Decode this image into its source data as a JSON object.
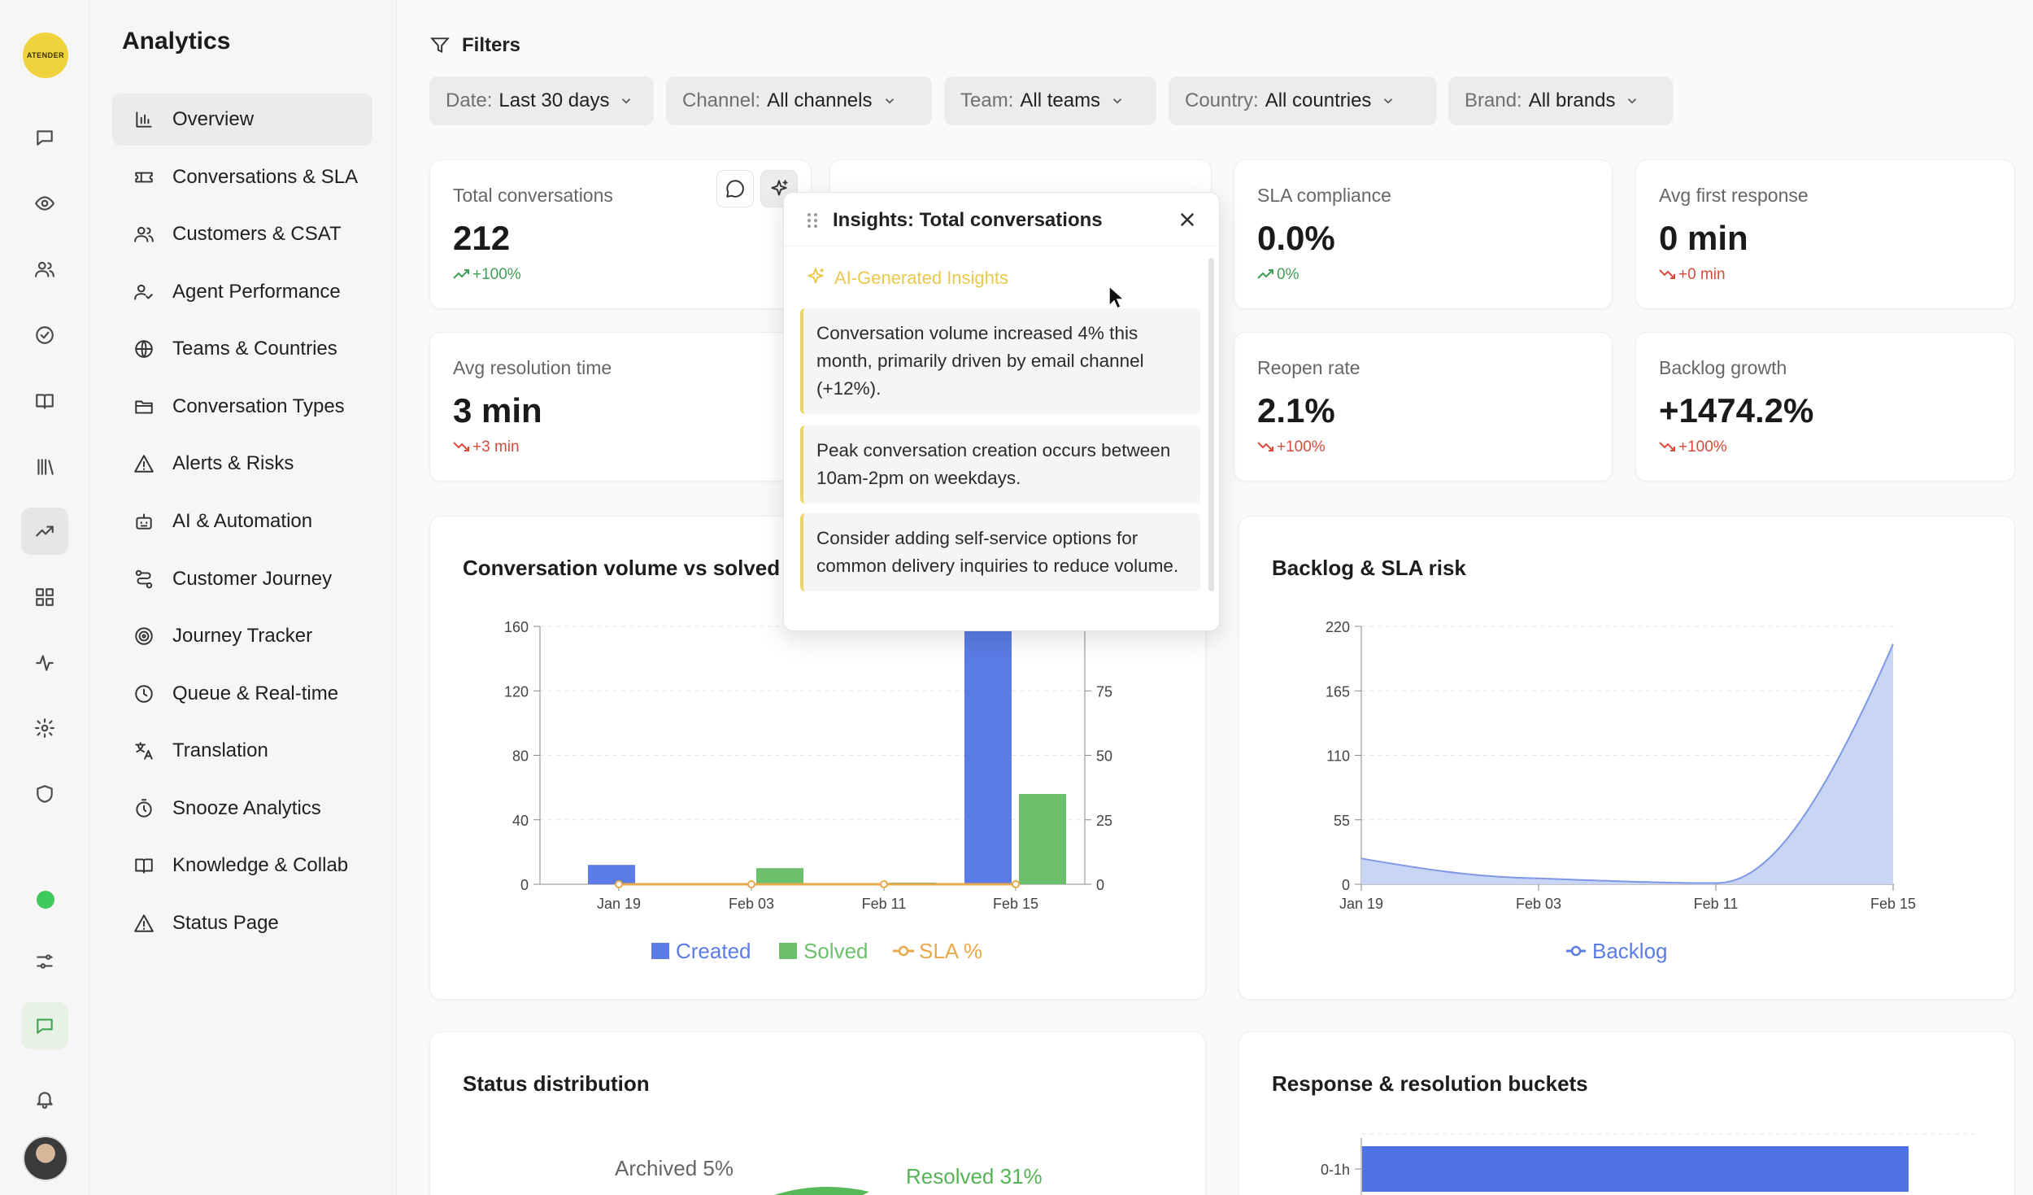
{
  "brand": {
    "logo_text": "ATENDER"
  },
  "sidebar": {
    "title": "Analytics",
    "items": [
      {
        "label": "Overview",
        "icon": "bar-chart-icon"
      },
      {
        "label": "Conversations & SLA",
        "icon": "ticket-icon"
      },
      {
        "label": "Customers & CSAT",
        "icon": "users-icon"
      },
      {
        "label": "Agent Performance",
        "icon": "user-check-icon"
      },
      {
        "label": "Teams & Countries",
        "icon": "globe-icon"
      },
      {
        "label": "Conversation Types",
        "icon": "folder-icon"
      },
      {
        "label": "Alerts & Risks",
        "icon": "warning-icon"
      },
      {
        "label": "AI & Automation",
        "icon": "bot-icon"
      },
      {
        "label": "Customer Journey",
        "icon": "route-icon"
      },
      {
        "label": "Journey Tracker",
        "icon": "target-icon"
      },
      {
        "label": "Queue & Real-time",
        "icon": "clock-icon"
      },
      {
        "label": "Translation",
        "icon": "translate-icon"
      },
      {
        "label": "Snooze Analytics",
        "icon": "timer-icon"
      },
      {
        "label": "Knowledge & Collab",
        "icon": "book-icon"
      },
      {
        "label": "Status Page",
        "icon": "warning-icon"
      }
    ]
  },
  "filters": {
    "heading": "Filters",
    "chips": [
      {
        "key": "Date:",
        "value": "Last 30 days"
      },
      {
        "key": "Channel:",
        "value": "All channels"
      },
      {
        "key": "Team:",
        "value": "All teams"
      },
      {
        "key": "Country:",
        "value": "All countries"
      },
      {
        "key": "Brand:",
        "value": "All brands"
      }
    ]
  },
  "kpis": {
    "total_conversations": {
      "label": "Total conversations",
      "value": "212",
      "delta": "+100%"
    },
    "sla_compliance": {
      "label": "SLA compliance",
      "value": "0.0%",
      "delta": "0%"
    },
    "avg_first_response": {
      "label": "Avg first response",
      "value": "0 min",
      "delta": "+0 min"
    },
    "avg_resolution": {
      "label": "Avg resolution time",
      "value": "3 min",
      "delta": "+3 min"
    },
    "reopen_rate": {
      "label": "Reopen rate",
      "value": "2.1%",
      "delta": "+100%"
    },
    "backlog_growth": {
      "label": "Backlog growth",
      "value": "+1474.2%",
      "delta": "+100%"
    }
  },
  "insights": {
    "title": "Insights: Total conversations",
    "section_label": "AI-Generated Insights",
    "items": [
      "Conversation volume increased 4% this month, primarily driven by email channel (+12%).",
      "Peak conversation creation occurs between 10am-2pm on weekdays.",
      "Consider adding self-service options for common delivery inquiries to reduce volume."
    ]
  },
  "charts": {
    "volume_title": "Conversation volume vs solved",
    "backlog_title": "Backlog & SLA risk",
    "status_title": "Status distribution",
    "buckets_title": "Response & resolution buckets"
  },
  "chart_data": [
    {
      "type": "bar",
      "title": "Conversation volume vs solved",
      "categories": [
        "Jan 19",
        "Feb 03",
        "Feb 11",
        "Feb 15"
      ],
      "ylim": [
        0,
        160
      ],
      "yticks": [
        0,
        40,
        80,
        120,
        160
      ],
      "y2ticks": [
        0,
        25,
        50,
        75
      ],
      "series": [
        {
          "name": "Created",
          "values": [
            12,
            0,
            0,
            160
          ],
          "color": "#5b7ce6"
        },
        {
          "name": "Solved",
          "values": [
            0,
            10,
            1,
            56
          ],
          "color": "#6cc06c"
        },
        {
          "name": "SLA %",
          "values": [
            0,
            0,
            0,
            0
          ],
          "color": "#e8a94a"
        }
      ],
      "legend": "bottom"
    },
    {
      "type": "area",
      "title": "Backlog & SLA risk",
      "x": [
        "Jan 19",
        "Feb 03",
        "Feb 11",
        "Feb 15"
      ],
      "xticks": [
        "Jan 19",
        "Feb 03",
        "Feb 11",
        "Feb 15"
      ],
      "ylim": [
        0,
        220
      ],
      "yticks": [
        0,
        55,
        110,
        165,
        220
      ],
      "series": [
        {
          "name": "Backlog",
          "values": [
            22,
            5,
            1,
            205
          ],
          "color": "#5b7ce6"
        }
      ],
      "legend": "bottom"
    },
    {
      "type": "pie",
      "title": "Status distribution",
      "labels": [
        "Archived 5%",
        "Resolved 31%"
      ],
      "values": [
        5,
        31
      ]
    },
    {
      "type": "bar",
      "title": "Response & resolution buckets",
      "categories": [
        "0-1h"
      ],
      "orientation": "horizontal"
    }
  ]
}
